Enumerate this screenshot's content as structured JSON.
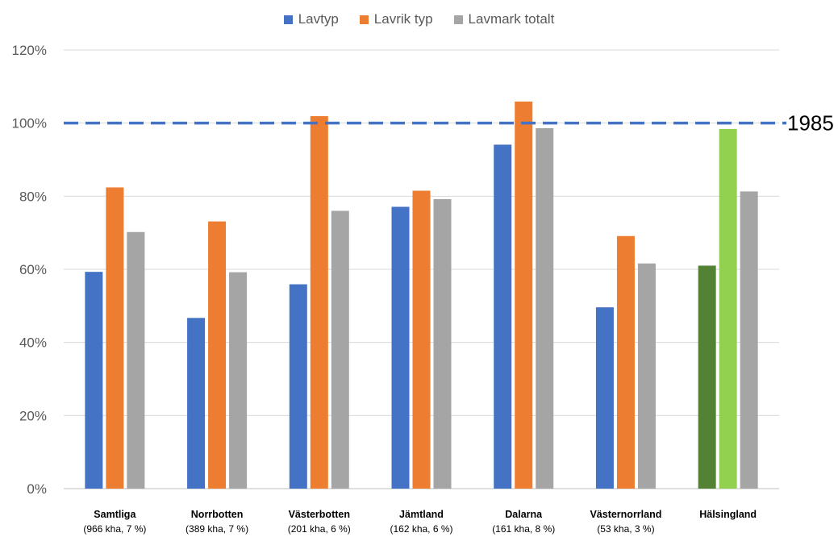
{
  "chart_data": {
    "type": "bar",
    "categories": [
      {
        "name": "Samtliga",
        "sub": "(966 kha, 7 %)"
      },
      {
        "name": "Norrbotten",
        "sub": "(389 kha, 7 %)"
      },
      {
        "name": "Västerbotten",
        "sub": "(201 kha, 6 %)"
      },
      {
        "name": "Jämtland",
        "sub": "(162 kha, 6 %)"
      },
      {
        "name": "Dalarna",
        "sub": "(161 kha, 8 %)"
      },
      {
        "name": "Västernorrland",
        "sub": "(53 kha, 3 %)"
      },
      {
        "name": "Hälsingland",
        "sub": ""
      }
    ],
    "series": [
      {
        "name": "Lavtyp",
        "color": "#4472C4",
        "values": [
          59.3,
          46.7,
          55.9,
          77.1,
          94.1,
          49.6,
          61.0
        ]
      },
      {
        "name": "Lavrik typ",
        "color": "#ED7D31",
        "values": [
          82.4,
          73.1,
          101.9,
          81.5,
          105.9,
          69.1,
          98.4
        ]
      },
      {
        "name": "Lavmark totalt",
        "color": "#A5A5A5",
        "values": [
          70.2,
          59.2,
          76.0,
          79.2,
          98.6,
          61.6,
          81.3
        ]
      }
    ],
    "highlight": {
      "category_index": 6,
      "colors": {
        "Lavtyp": "#548235",
        "Lavrik typ": "#92D050"
      }
    },
    "yticks": [
      "0%",
      "20%",
      "40%",
      "60%",
      "80%",
      "100%",
      "120%"
    ],
    "ylim": [
      0,
      120
    ],
    "grid": true,
    "legend_position": "top-center",
    "reference_line": {
      "value": 100,
      "label": "1985",
      "color": "#4472C4",
      "style": "dashed"
    },
    "title": "",
    "xlabel": "",
    "ylabel": ""
  }
}
